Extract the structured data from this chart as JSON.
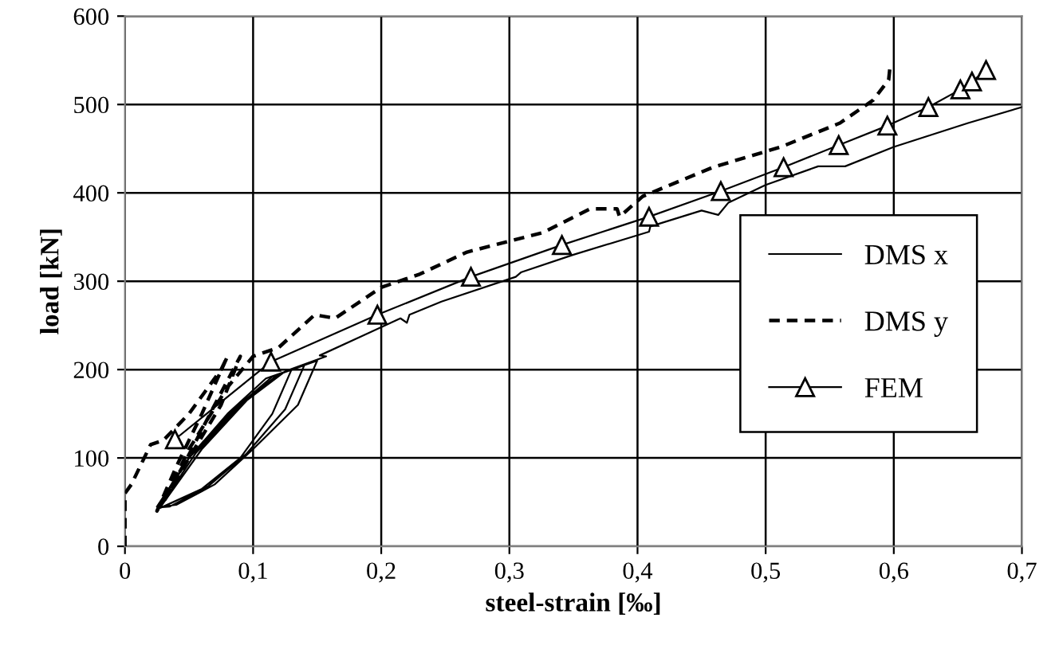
{
  "chart_data": {
    "type": "line",
    "xlabel": "steel-strain [‰]",
    "ylabel": "load [kN]",
    "xlim": [
      0,
      0.7
    ],
    "ylim": [
      0,
      600
    ],
    "xticks": [
      {
        "value": 0,
        "label": "0"
      },
      {
        "value": 0.1,
        "label": "0,1"
      },
      {
        "value": 0.2,
        "label": "0,2"
      },
      {
        "value": 0.3,
        "label": "0,3"
      },
      {
        "value": 0.4,
        "label": "0,4"
      },
      {
        "value": 0.5,
        "label": "0,5"
      },
      {
        "value": 0.6,
        "label": "0,6"
      },
      {
        "value": 0.7,
        "label": "0,7"
      }
    ],
    "yticks": [
      0,
      100,
      200,
      300,
      400,
      500,
      600
    ],
    "grid": true,
    "legend": "right",
    "series": [
      {
        "name": "DMS x",
        "color": "#000000",
        "line_style": "solid",
        "marker": "none",
        "x": [
          0.025,
          0.05,
          0.08,
          0.11,
          0.13,
          0.115,
          0.09,
          0.06,
          0.03,
          0.025,
          0.05,
          0.085,
          0.115,
          0.14,
          0.125,
          0.095,
          0.065,
          0.035,
          0.027,
          0.055,
          0.09,
          0.12,
          0.15,
          0.135,
          0.1,
          0.07,
          0.04,
          0.028,
          0.06,
          0.095,
          0.125,
          0.157,
          0.152,
          0.185,
          0.215,
          0.22,
          0.222,
          0.247,
          0.305,
          0.309,
          0.35,
          0.409,
          0.41,
          0.45,
          0.463,
          0.471,
          0.5,
          0.541,
          0.562,
          0.6,
          0.658,
          0.7
        ],
        "values": [
          45,
          100,
          150,
          190,
          200,
          150,
          100,
          65,
          45,
          42,
          100,
          155,
          192,
          205,
          155,
          105,
          68,
          45,
          44,
          105,
          160,
          195,
          210,
          160,
          110,
          70,
          47,
          45,
          110,
          165,
          198,
          215,
          216,
          238,
          258,
          253,
          262,
          277,
          305,
          310,
          330,
          356,
          362,
          380,
          375,
          389,
          409,
          430,
          430,
          452,
          479,
          497
        ]
      },
      {
        "name": "DMS y",
        "color": "#000000",
        "line_style": "dashed",
        "marker": "none",
        "x": [
          0,
          0,
          0.005,
          0.015,
          0.02,
          0.03,
          0.05,
          0.075,
          0.08,
          0.06,
          0.04,
          0.025,
          0.045,
          0.07,
          0.09,
          0.075,
          0.05,
          0.03,
          0.05,
          0.08,
          0.1,
          0.12,
          0.148,
          0.164,
          0.2,
          0.23,
          0.267,
          0.326,
          0.363,
          0.384,
          0.386,
          0.404,
          0.459,
          0.512,
          0.558,
          0.584,
          0.596,
          0.597
        ],
        "values": [
          0,
          60,
          70,
          100,
          115,
          120,
          150,
          200,
          215,
          150,
          90,
          40,
          90,
          160,
          215,
          160,
          100,
          50,
          110,
          180,
          215,
          225,
          262,
          258,
          293,
          308,
          333,
          355,
          382,
          382,
          373,
          396,
          429,
          452,
          479,
          505,
          528,
          542
        ]
      },
      {
        "name": "FEM",
        "color": "#000000",
        "line_style": "solid",
        "marker": "triangle",
        "x": [
          0.039,
          0.114,
          0.197,
          0.27,
          0.341,
          0.409,
          0.465,
          0.514,
          0.557,
          0.595,
          0.627,
          0.652,
          0.661,
          0.672
        ],
        "values": [
          121,
          209,
          262,
          305,
          341,
          373,
          402,
          429,
          454,
          476,
          497,
          517,
          526,
          539
        ]
      }
    ]
  }
}
